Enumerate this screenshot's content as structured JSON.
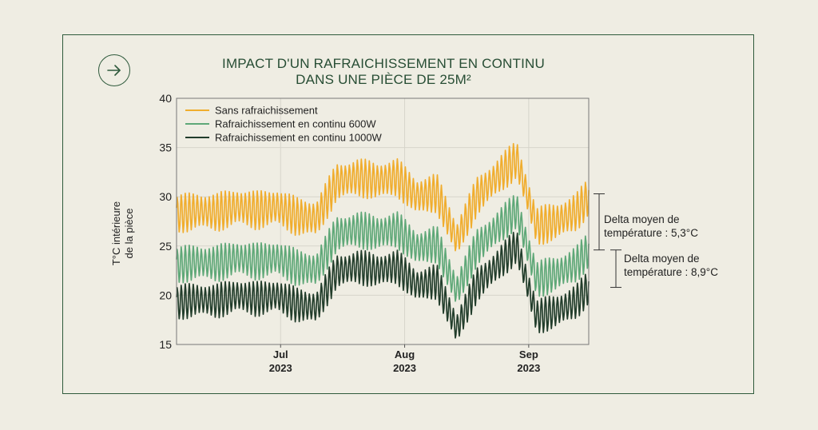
{
  "header": {
    "title_line1": "IMPACT D'UN RAFRAICHISSEMENT EN CONTINU",
    "title_line2": "DANS UNE PIÈCE DE 25M²"
  },
  "nav": {
    "icon": "arrow-right-icon"
  },
  "colors": {
    "accent": "#2f5a3c",
    "background": "#efede3"
  },
  "chart_data": {
    "type": "line",
    "ylabel_line1": "T°C intérieure",
    "ylabel_line2": "de la pièce",
    "ylim": [
      15,
      40
    ],
    "yticks": [
      "15",
      "20",
      "25",
      "30",
      "35",
      "40"
    ],
    "xlim": [
      "2023-06-05",
      "2023-09-16"
    ],
    "xticks": [
      {
        "date": "2023-07-01",
        "label": "Jul",
        "year": "2023"
      },
      {
        "date": "2023-08-01",
        "label": "Aug",
        "year": "2023"
      },
      {
        "date": "2023-09-01",
        "label": "Sep",
        "year": "2023"
      }
    ],
    "grid": true,
    "legend_position": "top-left",
    "x": [
      "2023-06-05",
      "2023-06-10",
      "2023-06-15",
      "2023-06-20",
      "2023-06-25",
      "2023-06-30",
      "2023-07-05",
      "2023-07-10",
      "2023-07-15",
      "2023-07-20",
      "2023-07-25",
      "2023-07-30",
      "2023-08-04",
      "2023-08-09",
      "2023-08-14",
      "2023-08-19",
      "2023-08-24",
      "2023-08-29",
      "2023-09-03",
      "2023-09-08",
      "2023-09-13",
      "2023-09-16"
    ],
    "series": [
      {
        "name": "Sans rafraichissement",
        "color": "#f0ad2e",
        "values": [
          28.2,
          28.6,
          28.4,
          29.0,
          28.6,
          29.0,
          28.0,
          27.8,
          31.5,
          32.0,
          31.6,
          32.0,
          30.0,
          30.4,
          25.6,
          30.0,
          32.0,
          33.8,
          27.0,
          27.5,
          28.5,
          30.0
        ]
      },
      {
        "name": "Rafraichissement en continu 600W",
        "color": "#5fa878",
        "values": [
          23.0,
          23.4,
          23.2,
          23.8,
          23.4,
          23.8,
          22.8,
          22.6,
          26.2,
          26.7,
          26.3,
          26.7,
          24.8,
          25.2,
          20.4,
          24.8,
          26.8,
          28.6,
          21.6,
          22.2,
          23.2,
          24.6
        ]
      },
      {
        "name": "Rafraichissement en continu 1000W",
        "color": "#223d2b",
        "values": [
          19.2,
          19.6,
          19.4,
          20.0,
          19.6,
          20.0,
          19.0,
          18.8,
          22.4,
          22.9,
          22.5,
          22.9,
          21.0,
          21.4,
          16.6,
          21.0,
          23.0,
          25.0,
          17.8,
          18.4,
          19.4,
          20.8
        ]
      }
    ],
    "annotations": [
      {
        "line1": "Delta moyen de",
        "line2": "température : 5,3°C",
        "from": 30.3,
        "to": 24.6
      },
      {
        "line1": "Delta moyen de",
        "line2": "température : 8,9°C",
        "to": 20.8
      }
    ]
  }
}
